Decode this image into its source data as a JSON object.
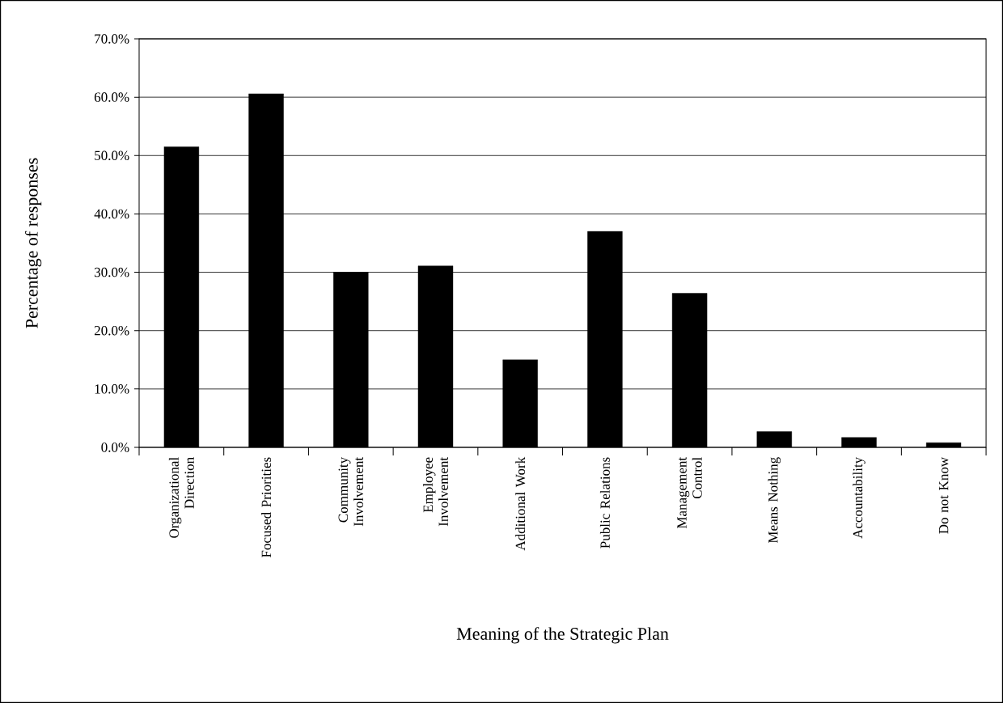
{
  "chart_data": {
    "type": "bar",
    "xlabel": "Meaning of the Strategic Plan",
    "ylabel": "Percentage of responses",
    "categories": [
      "Organizational Direction",
      "Focused Priorities",
      "Community Involvement",
      "Employee Involvement",
      "Additional Work",
      "Public Relations",
      "Management Control",
      "Means Nothing",
      "Accountability",
      "Do not Know"
    ],
    "values": [
      51.5,
      60.6,
      30.0,
      31.1,
      15.0,
      37.0,
      26.4,
      2.7,
      1.7,
      0.8
    ],
    "color": "#000000",
    "ylim": [
      0,
      70
    ],
    "yticks": [
      {
        "value": 0,
        "label": "0.0%"
      },
      {
        "value": 10,
        "label": "10.0%"
      },
      {
        "value": 20,
        "label": "20.0%"
      },
      {
        "value": 30,
        "label": "30.0%"
      },
      {
        "value": 40,
        "label": "40.0%"
      },
      {
        "value": 50,
        "label": "50.0%"
      },
      {
        "value": 60,
        "label": "60.0%"
      },
      {
        "value": 70,
        "label": "70.0%"
      }
    ],
    "grid": "y"
  }
}
